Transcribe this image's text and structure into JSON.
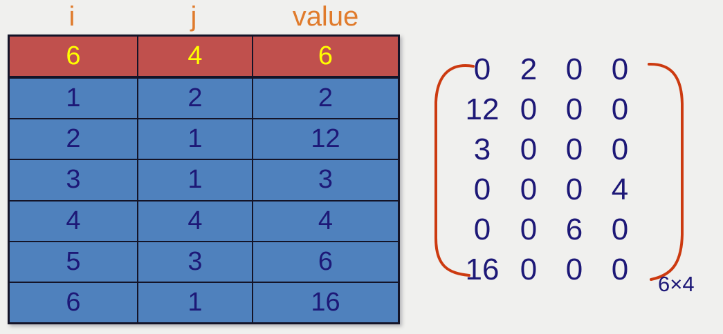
{
  "table": {
    "column_headers": [
      "i",
      "j",
      "value"
    ],
    "summary_row": [
      "6",
      "4",
      "6"
    ],
    "rows": [
      [
        "1",
        "2",
        "2"
      ],
      [
        "2",
        "1",
        "12"
      ],
      [
        "3",
        "1",
        "3"
      ],
      [
        "4",
        "4",
        "4"
      ],
      [
        "5",
        "3",
        "6"
      ],
      [
        "6",
        "1",
        "16"
      ]
    ]
  },
  "matrix": {
    "rows": [
      [
        "0",
        "2",
        "0",
        "0"
      ],
      [
        "12",
        "0",
        "0",
        "0"
      ],
      [
        "3",
        "0",
        "0",
        "0"
      ],
      [
        "0",
        "0",
        "0",
        "4"
      ],
      [
        "0",
        "0",
        "6",
        "0"
      ],
      [
        "16",
        "0",
        "0",
        "0"
      ]
    ],
    "dimension_label": "6×4"
  },
  "colors": {
    "background": "#f0f0ee",
    "header_text": "#e07b2c",
    "summary_row_bg": "#c0504d",
    "summary_row_text": "#ffff00",
    "data_row_bg": "#4f81bd",
    "data_row_text": "#1d1877",
    "table_border": "#141428",
    "matrix_text": "#1d1877",
    "bracket": "#cc3a10"
  }
}
